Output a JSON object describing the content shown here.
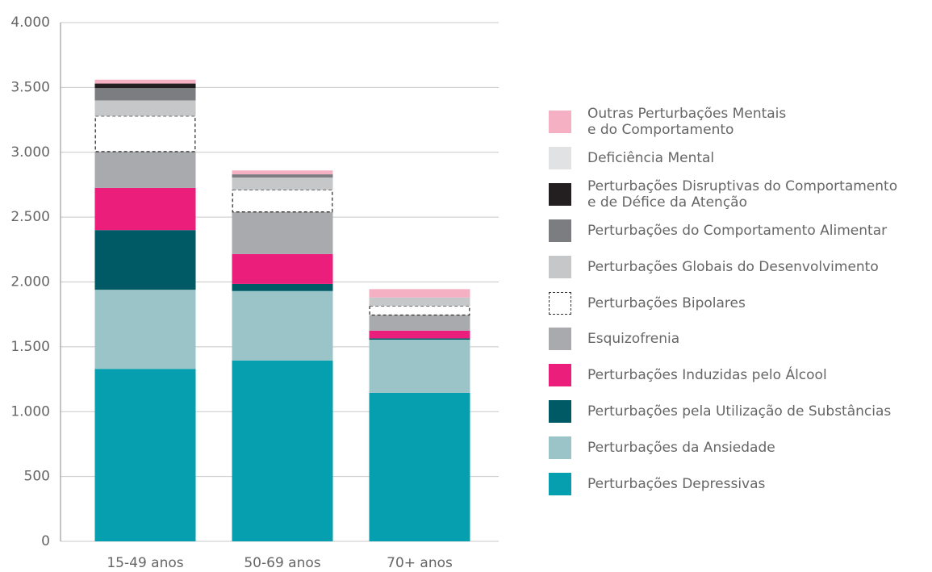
{
  "chart_data": {
    "type": "bar",
    "stacked": true,
    "categories": [
      "15-49 anos",
      "50-69 anos",
      "70+ anos"
    ],
    "ylim": [
      0,
      4000
    ],
    "yticks": [
      0,
      500,
      {
        "value": 1000,
        "label": "1.000"
      },
      {
        "value": 1500,
        "label": "1.500"
      },
      {
        "value": 2000,
        "label": "2.000"
      },
      {
        "value": 2500,
        "label": "2.500"
      },
      {
        "value": 3000,
        "label": "3.000"
      },
      {
        "value": 3500,
        "label": "3.500"
      },
      {
        "value": 4000,
        "label": "4.000"
      }
    ],
    "grid": true,
    "legend": "right",
    "series": [
      {
        "name": "Perturbações Depressivas",
        "color": "#069fb0",
        "values": [
          1330,
          1395,
          1145
        ]
      },
      {
        "name": "Perturbações da Ansiedade",
        "color": "#9ac4c8",
        "values": [
          610,
          535,
          410
        ]
      },
      {
        "name": "Perturbações pela Utilização de Substâncias",
        "color": "#005a66",
        "values": [
          460,
          55,
          10
        ]
      },
      {
        "name": "Perturbações Induzidas pelo Álcool",
        "color": "#ec1e7b",
        "values": [
          325,
          230,
          60
        ]
      },
      {
        "name": "Esquizofrenia",
        "color": "#a9aaad",
        "values": [
          280,
          325,
          120
        ]
      },
      {
        "name": "Perturbações Bipolares",
        "color": "#ffffff",
        "border": "dashed",
        "values": [
          275,
          170,
          70
        ]
      },
      {
        "name": "Perturbações Globais do Desenvolvimento",
        "color": "#c6c7c9",
        "values": [
          120,
          95,
          65
        ]
      },
      {
        "name": "Perturbações do Comportamento Alimentar",
        "color": "#7c7d80",
        "values": [
          95,
          25,
          0
        ]
      },
      {
        "name": "Perturbações Disruptivas do Comportamento\ne de Défice da Atenção",
        "color": "#231f20",
        "values": [
          35,
          0,
          0
        ]
      },
      {
        "name": "Deficiência Mental",
        "color": "#e1e2e4",
        "values": [
          0,
          0,
          0
        ]
      },
      {
        "name": "Outras Perturbações Mentais\ne do Comportamento",
        "color": "#f5b0c4",
        "values": [
          30,
          30,
          65
        ]
      }
    ]
  }
}
